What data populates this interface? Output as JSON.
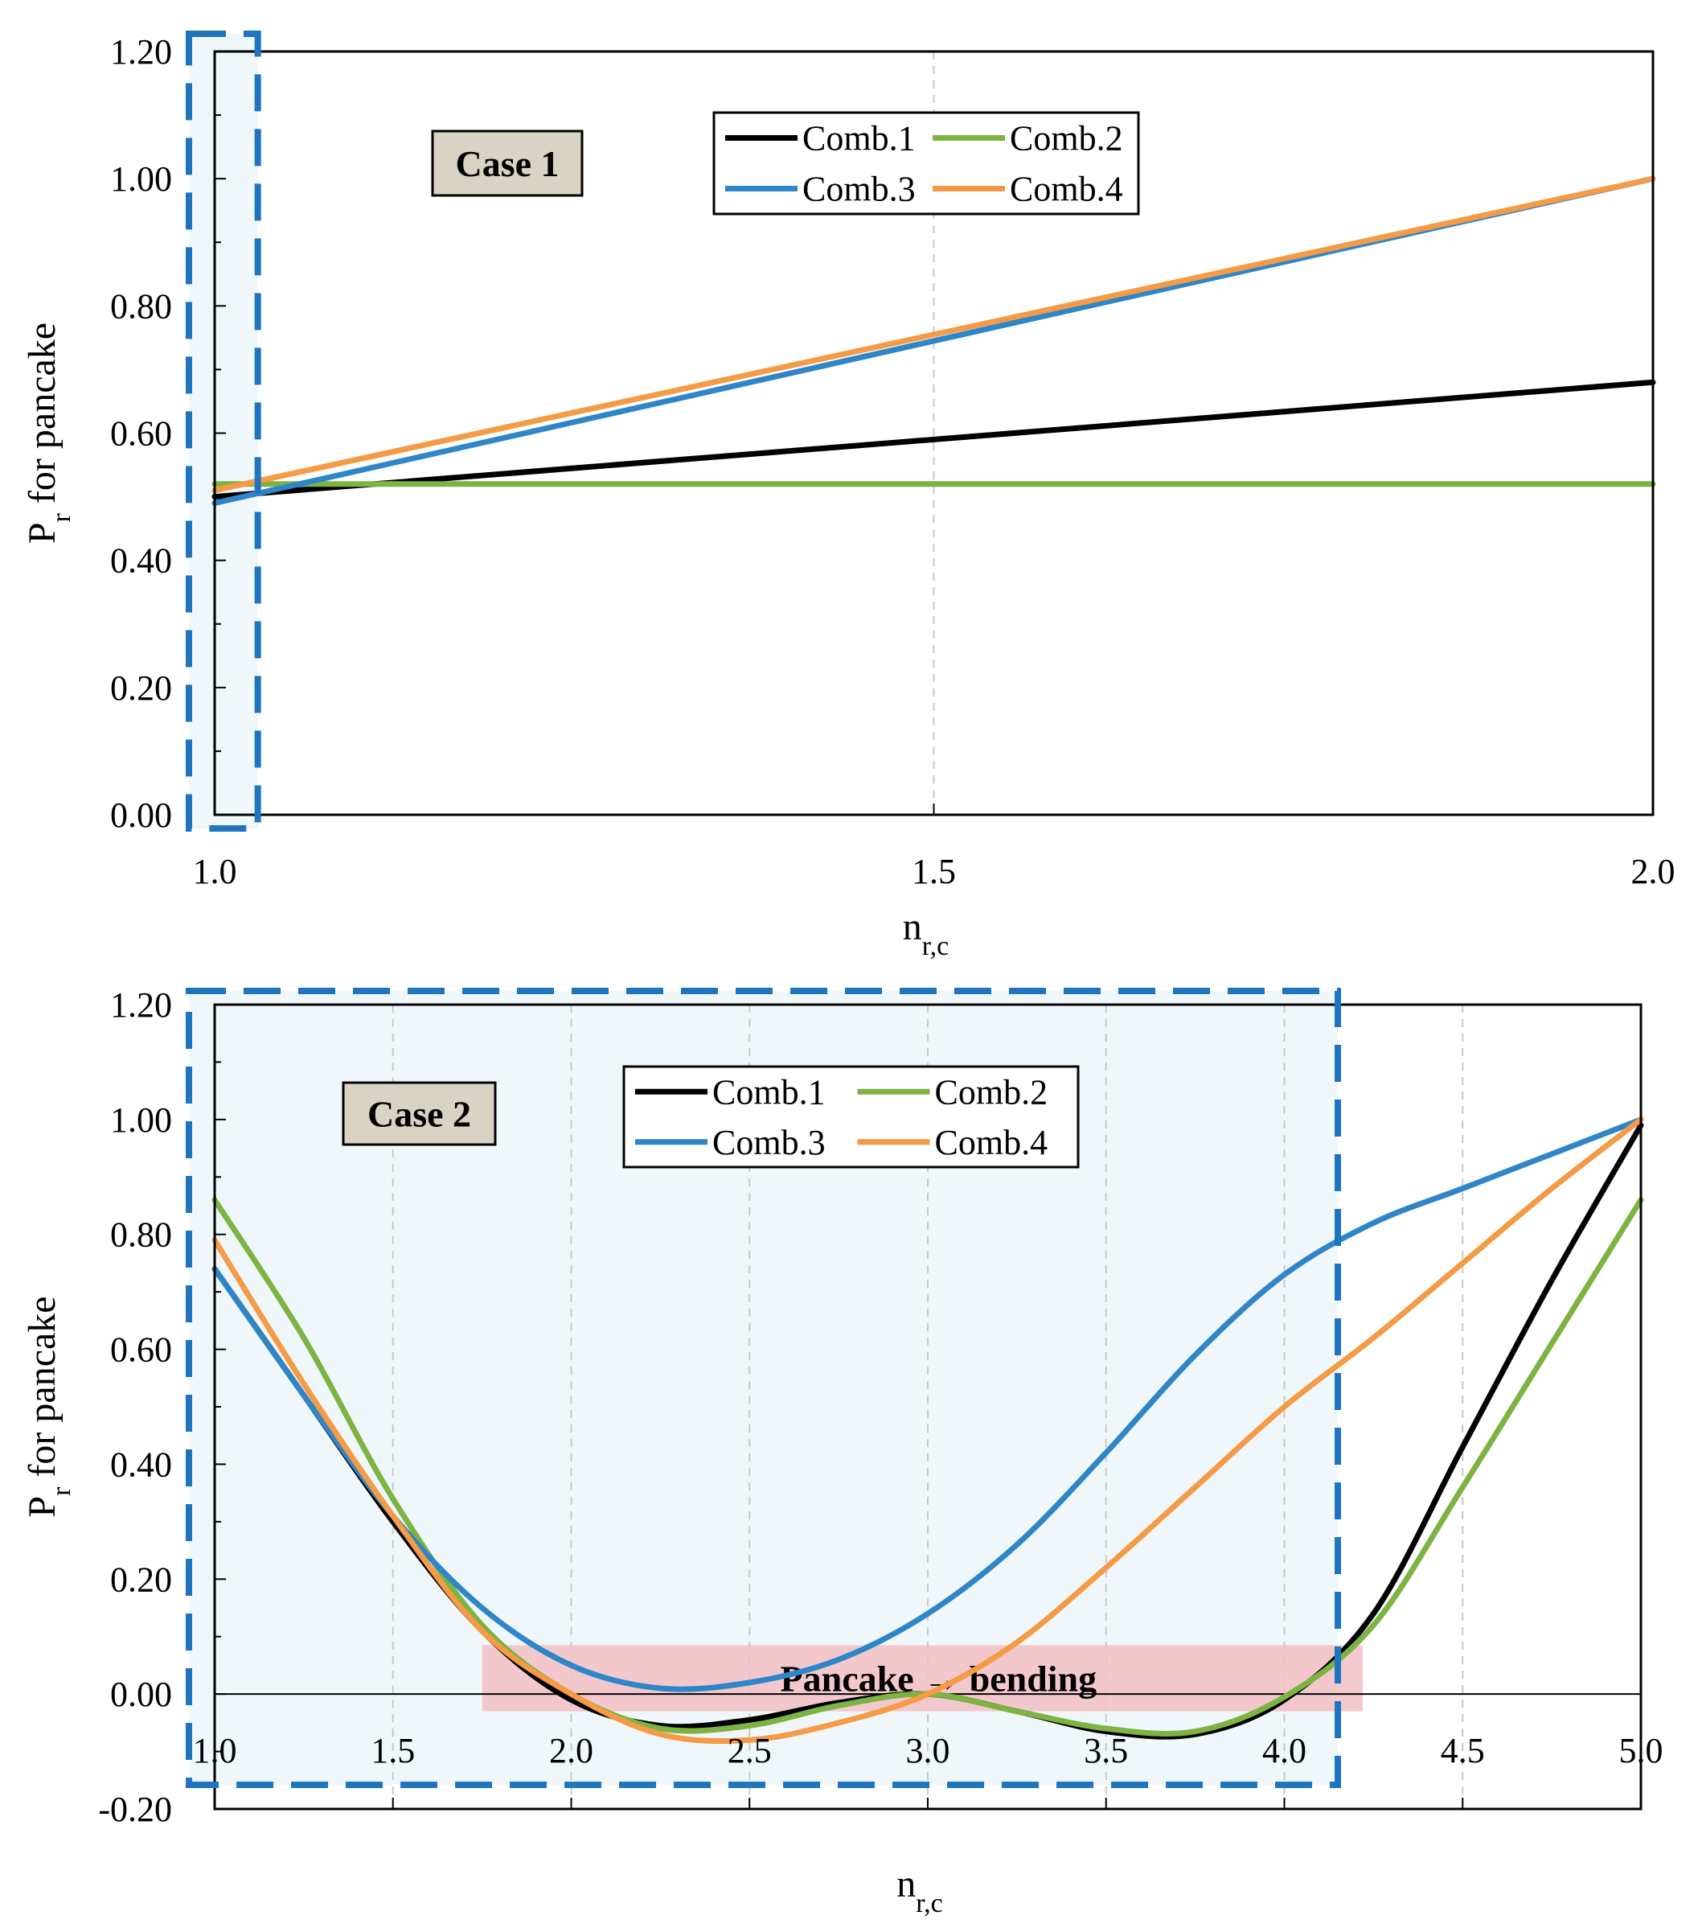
{
  "chart_data": [
    {
      "type": "line",
      "case_label": "Case 1",
      "xlabel": "n",
      "xlabel_sub": "r,c",
      "ylabel": "P",
      "ylabel_sub": "r",
      "ylabel_rest": " for pancake",
      "xlim": [
        1.0,
        2.0
      ],
      "ylim": [
        0.0,
        1.2
      ],
      "xticks": [
        {
          "value": 1.0,
          "label": "1.0"
        },
        {
          "value": 1.5,
          "label": "1.5"
        },
        {
          "value": 2.0,
          "label": "2.0"
        }
      ],
      "yticks": [
        {
          "value": 0.0,
          "label": "0.00"
        },
        {
          "value": 0.2,
          "label": "0.20"
        },
        {
          "value": 0.4,
          "label": "0.40"
        },
        {
          "value": 0.6,
          "label": "0.60"
        },
        {
          "value": 0.8,
          "label": "0.80"
        },
        {
          "value": 1.0,
          "label": "1.00"
        },
        {
          "value": 1.2,
          "label": "1.20"
        }
      ],
      "vgrid": [
        1.5
      ],
      "highlight_x": [
        1.0,
        1.03
      ],
      "legend": {
        "placement": "top-center",
        "columns": 2
      },
      "series": [
        {
          "name": "Comb.1",
          "color": "#000000",
          "x": [
            1.0,
            2.0
          ],
          "y": [
            0.5,
            0.68
          ]
        },
        {
          "name": "Comb.2",
          "color": "#7cb342",
          "x": [
            1.0,
            2.0
          ],
          "y": [
            0.52,
            0.52
          ]
        },
        {
          "name": "Comb.3",
          "color": "#2e86c8",
          "x": [
            1.0,
            2.0
          ],
          "y": [
            0.49,
            1.0
          ]
        },
        {
          "name": "Comb.4",
          "color": "#f59a45",
          "x": [
            1.0,
            2.0
          ],
          "y": [
            0.51,
            1.0
          ]
        }
      ]
    },
    {
      "type": "line",
      "case_label": "Case 2",
      "xlabel": "n",
      "xlabel_sub": "r,c",
      "ylabel": "P",
      "ylabel_sub": "r",
      "ylabel_rest": " for pancake",
      "xlim": [
        1.0,
        5.0
      ],
      "ylim": [
        -0.2,
        1.2
      ],
      "xticks": [
        {
          "value": 1.0,
          "label": "1.0"
        },
        {
          "value": 1.5,
          "label": "1.5"
        },
        {
          "value": 2.0,
          "label": "2.0"
        },
        {
          "value": 2.5,
          "label": "2.5"
        },
        {
          "value": 3.0,
          "label": "3.0"
        },
        {
          "value": 3.5,
          "label": "3.5"
        },
        {
          "value": 4.0,
          "label": "4.0"
        },
        {
          "value": 4.5,
          "label": "4.5"
        },
        {
          "value": 5.0,
          "label": "5.0"
        }
      ],
      "yticks": [
        {
          "value": -0.2,
          "label": "-0.20"
        },
        {
          "value": 0.0,
          "label": "0.00"
        },
        {
          "value": 0.2,
          "label": "0.20"
        },
        {
          "value": 0.4,
          "label": "0.40"
        },
        {
          "value": 0.6,
          "label": "0.60"
        },
        {
          "value": 0.8,
          "label": "0.80"
        },
        {
          "value": 1.0,
          "label": "1.00"
        },
        {
          "value": 1.2,
          "label": "1.20"
        }
      ],
      "vgrid": [
        1.5,
        2.0,
        2.5,
        3.0,
        3.5,
        4.0,
        4.5
      ],
      "highlight_x": [
        1.0,
        4.15
      ],
      "band": {
        "label": "Pancake → bending",
        "x": [
          1.75,
          4.22
        ],
        "y": [
          -0.03,
          0.085
        ],
        "color": "#f2bfc4"
      },
      "legend": {
        "placement": "top-center",
        "columns": 2
      },
      "series": [
        {
          "name": "Comb.1",
          "color": "#000000",
          "x": [
            1.0,
            1.25,
            1.5,
            1.75,
            2.0,
            2.25,
            2.5,
            2.75,
            3.0,
            3.25,
            3.5,
            3.75,
            4.0,
            4.25,
            4.5,
            4.75,
            5.0
          ],
          "y": [
            0.74,
            0.52,
            0.3,
            0.11,
            -0.01,
            -0.055,
            -0.045,
            -0.015,
            0.0,
            -0.03,
            -0.065,
            -0.07,
            -0.01,
            0.14,
            0.43,
            0.72,
            0.99
          ]
        },
        {
          "name": "Comb.2",
          "color": "#7cb342",
          "x": [
            1.0,
            1.25,
            1.5,
            1.75,
            2.0,
            2.25,
            2.5,
            2.75,
            3.0,
            3.25,
            3.5,
            3.75,
            4.0,
            4.25,
            4.5,
            4.75,
            5.0
          ],
          "y": [
            0.86,
            0.62,
            0.34,
            0.12,
            0.0,
            -0.06,
            -0.055,
            -0.02,
            0.0,
            -0.03,
            -0.06,
            -0.065,
            -0.005,
            0.12,
            0.36,
            0.61,
            0.86
          ]
        },
        {
          "name": "Comb.3",
          "color": "#2e86c8",
          "x": [
            1.0,
            1.25,
            1.5,
            1.75,
            2.0,
            2.25,
            2.5,
            2.75,
            3.0,
            3.25,
            3.5,
            3.75,
            4.0,
            4.25,
            4.5,
            4.75,
            5.0
          ],
          "y": [
            0.74,
            0.52,
            0.31,
            0.15,
            0.05,
            0.01,
            0.02,
            0.06,
            0.14,
            0.26,
            0.42,
            0.59,
            0.73,
            0.82,
            0.88,
            0.94,
            1.0
          ]
        },
        {
          "name": "Comb.4",
          "color": "#f59a45",
          "x": [
            1.0,
            1.25,
            1.5,
            1.75,
            2.0,
            2.25,
            2.5,
            2.75,
            3.0,
            3.25,
            3.5,
            3.75,
            4.0,
            4.25,
            4.5,
            4.75,
            5.0
          ],
          "y": [
            0.79,
            0.54,
            0.31,
            0.11,
            0.0,
            -0.07,
            -0.08,
            -0.05,
            0.0,
            0.09,
            0.22,
            0.36,
            0.5,
            0.62,
            0.75,
            0.88,
            1.0
          ]
        }
      ]
    }
  ]
}
